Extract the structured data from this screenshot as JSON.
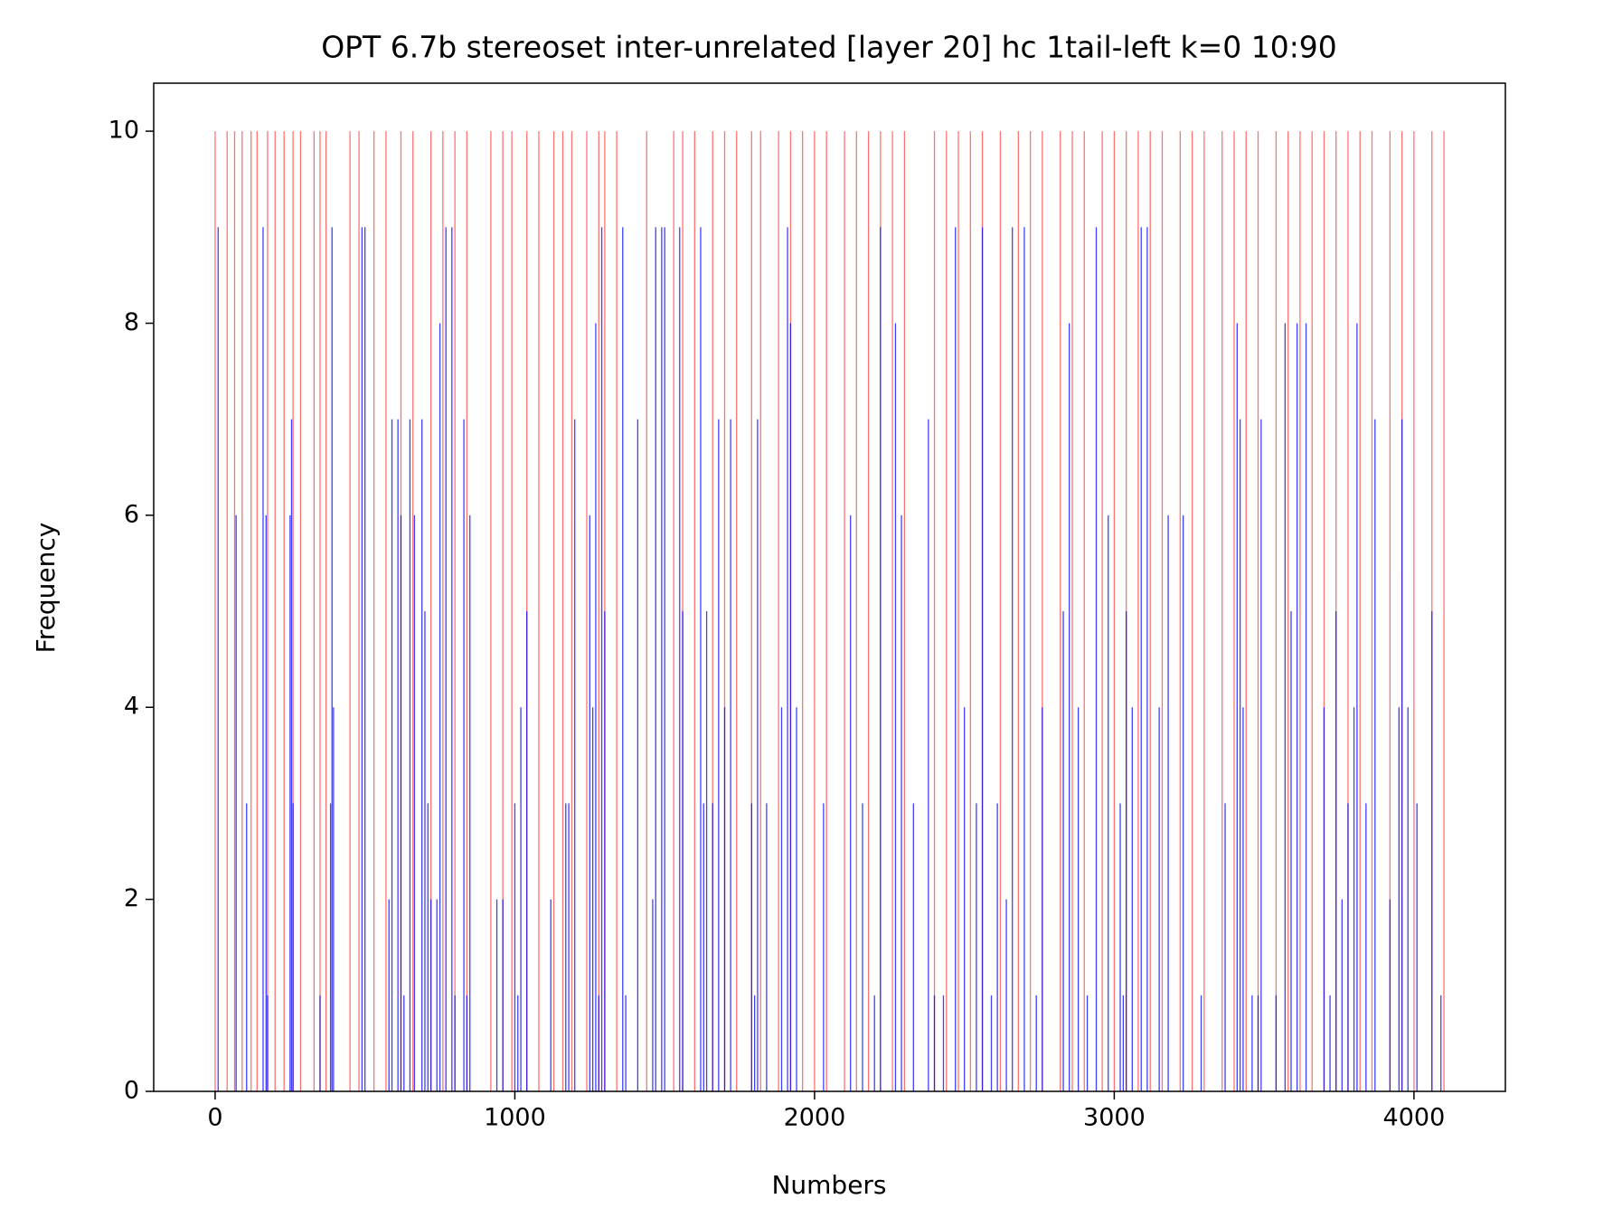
{
  "chart_data": {
    "type": "bar",
    "title": "OPT 6.7b stereoset inter-unrelated [layer 20] hc 1tail-left k=0 10:90",
    "x_label": "Numbers",
    "y_label": "Frequency",
    "xlim": [
      -205,
      4305
    ],
    "ylim": [
      0,
      10.5
    ],
    "xticks": [
      0,
      1000,
      2000,
      3000,
      4000
    ],
    "yticks": [
      0,
      2,
      4,
      6,
      8,
      10
    ],
    "series": [
      {
        "color": "#ff0000",
        "x": [
          0,
          40,
          65,
          90,
          120,
          140,
          175,
          200,
          230,
          260,
          285,
          330,
          350,
          370,
          450,
          480,
          530,
          570,
          620,
          660,
          720,
          760,
          800,
          840,
          920,
          960,
          990,
          1040,
          1080,
          1130,
          1160,
          1190,
          1240,
          1280,
          1300,
          1340,
          1440,
          1530,
          1560,
          1600,
          1660,
          1700,
          1740,
          1790,
          1820,
          1880,
          1920,
          1960,
          2000,
          2040,
          2100,
          2140,
          2180,
          2220,
          2260,
          2300,
          2400,
          2440,
          2480,
          2520,
          2560,
          2620,
          2680,
          2720,
          2760,
          2820,
          2860,
          2900,
          2960,
          3000,
          3040,
          3080,
          3120,
          3160,
          3220,
          3260,
          3300,
          3360,
          3400,
          3440,
          3480,
          3540,
          3580,
          3620,
          3660,
          3700,
          3740,
          3780,
          3820,
          3860,
          3920,
          3960,
          4000,
          4060,
          4100
        ],
        "values": [
          10,
          10,
          10,
          10,
          10,
          10,
          10,
          10,
          10,
          10,
          10,
          10,
          10,
          10,
          10,
          10,
          10,
          10,
          10,
          10,
          10,
          10,
          10,
          10,
          10,
          10,
          10,
          10,
          10,
          10,
          10,
          10,
          10,
          10,
          10,
          10,
          10,
          10,
          10,
          10,
          10,
          10,
          10,
          10,
          10,
          10,
          10,
          10,
          10,
          10,
          10,
          10,
          10,
          10,
          10,
          10,
          10,
          10,
          10,
          10,
          10,
          10,
          10,
          10,
          10,
          10,
          10,
          10,
          10,
          10,
          10,
          10,
          10,
          10,
          10,
          10,
          10,
          10,
          10,
          10,
          10,
          10,
          10,
          10,
          10,
          10,
          10,
          10,
          10,
          10,
          10,
          10,
          10,
          10,
          10
        ]
      },
      {
        "color": "#0000ff",
        "x": [
          10,
          70,
          105,
          160,
          170,
          175,
          250,
          255,
          260,
          350,
          385,
          390,
          395,
          490,
          500,
          580,
          590,
          610,
          620,
          630,
          650,
          665,
          690,
          700,
          710,
          720,
          740,
          750,
          770,
          790,
          800,
          830,
          840,
          850,
          940,
          960,
          1000,
          1010,
          1020,
          1040,
          1120,
          1170,
          1180,
          1200,
          1250,
          1260,
          1270,
          1280,
          1290,
          1300,
          1360,
          1370,
          1410,
          1460,
          1470,
          1490,
          1500,
          1550,
          1560,
          1620,
          1630,
          1640,
          1660,
          1680,
          1700,
          1720,
          1790,
          1800,
          1810,
          1840,
          1890,
          1910,
          1920,
          1940,
          2030,
          2120,
          2160,
          2200,
          2220,
          2270,
          2290,
          2330,
          2380,
          2400,
          2430,
          2470,
          2500,
          2540,
          2560,
          2590,
          2610,
          2640,
          2660,
          2700,
          2740,
          2760,
          2830,
          2850,
          2880,
          2910,
          2940,
          2980,
          3020,
          3030,
          3040,
          3060,
          3090,
          3110,
          3150,
          3180,
          3230,
          3290,
          3370,
          3410,
          3420,
          3430,
          3460,
          3480,
          3490,
          3540,
          3570,
          3590,
          3610,
          3640,
          3700,
          3720,
          3740,
          3760,
          3780,
          3800,
          3810,
          3840,
          3870,
          3920,
          3950,
          3960,
          3980,
          4010,
          4060,
          4090
        ],
        "values": [
          9,
          6,
          3,
          9,
          6,
          1,
          6,
          7,
          3,
          1,
          3,
          9,
          4,
          9,
          9,
          2,
          7,
          7,
          6,
          1,
          7,
          6,
          7,
          5,
          3,
          2,
          2,
          8,
          9,
          9,
          1,
          7,
          1,
          6,
          2,
          2,
          3,
          1,
          4,
          5,
          2,
          3,
          3,
          7,
          6,
          4,
          8,
          1,
          9,
          5,
          9,
          1,
          7,
          2,
          9,
          9,
          9,
          9,
          5,
          9,
          3,
          5,
          3,
          7,
          4,
          7,
          3,
          1,
          7,
          3,
          4,
          9,
          8,
          4,
          3,
          6,
          3,
          1,
          9,
          8,
          6,
          3,
          7,
          1,
          1,
          9,
          4,
          3,
          9,
          1,
          3,
          2,
          9,
          9,
          1,
          4,
          5,
          8,
          4,
          1,
          9,
          6,
          3,
          1,
          5,
          4,
          9,
          9,
          4,
          6,
          6,
          1,
          3,
          8,
          7,
          4,
          1,
          1,
          7,
          1,
          8,
          5,
          8,
          8,
          4,
          1,
          5,
          2,
          3,
          4,
          8,
          3,
          7,
          2,
          4,
          7,
          4,
          3,
          5,
          1
        ]
      }
    ]
  }
}
